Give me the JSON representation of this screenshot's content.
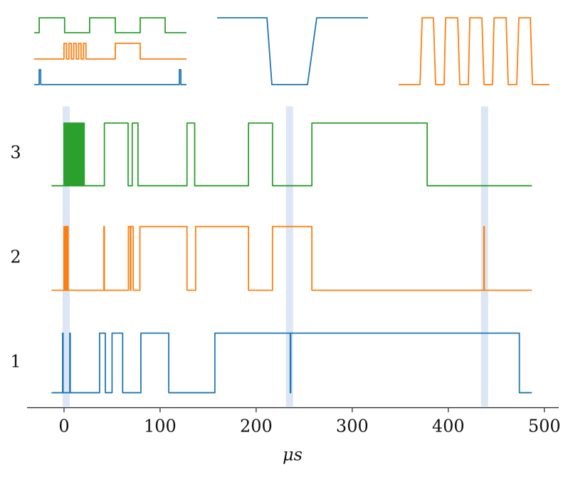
{
  "chart_data": [
    {
      "type": "line",
      "x_label": "μs",
      "xlim": [
        -38.5,
        515
      ],
      "xticks": [
        0,
        100,
        200,
        300,
        400,
        500
      ],
      "ylim": [
        0.57,
        3.45
      ],
      "yticks": [
        1,
        2,
        3
      ],
      "highlights": [
        [
          -1.5,
          6
        ],
        [
          231,
          238.5
        ],
        [
          434,
          441.5
        ]
      ],
      "highlight_color": "#dce6f4",
      "series": [
        {
          "color": "#1f77b4",
          "x": [
            -13,
            -1.5,
            -1.5,
            -1,
            -1,
            6,
            6,
            6.5,
            6.5,
            37,
            37,
            43,
            43,
            50,
            50,
            61,
            61,
            80,
            80,
            109,
            109,
            157,
            157,
            235.5,
            235.5,
            236,
            236,
            474,
            474,
            487
          ],
          "values": [
            0.71,
            0.71,
            1.28,
            1.28,
            0.71,
            0.71,
            1.28,
            1.28,
            0.71,
            0.71,
            1.28,
            1.28,
            0.71,
            0.71,
            1.28,
            1.28,
            0.71,
            0.71,
            1.28,
            1.28,
            0.71,
            0.71,
            1.28,
            1.28,
            0.71,
            0.71,
            1.28,
            1.28,
            0.71,
            0.71
          ]
        },
        {
          "color": "#ff7f0e",
          "x": [
            -13,
            0,
            0,
            0.6,
            0.6,
            1.2,
            1.2,
            1.8,
            1.8,
            2.4,
            2.4,
            3,
            3,
            3.6,
            3.6,
            4.2,
            4.2,
            41.5,
            41.5,
            42,
            42,
            67,
            67,
            69,
            69,
            69.5,
            69.5,
            72,
            72,
            79,
            79,
            128,
            128,
            137,
            137,
            192,
            192,
            217,
            217,
            258,
            258,
            437,
            437,
            437.5,
            437.5,
            487
          ],
          "values": [
            1.69,
            1.69,
            2.3,
            2.3,
            1.69,
            1.69,
            2.3,
            2.3,
            1.69,
            1.69,
            2.3,
            2.3,
            1.69,
            1.69,
            2.3,
            2.3,
            1.69,
            1.69,
            2.3,
            2.3,
            1.69,
            1.69,
            2.3,
            2.3,
            1.69,
            1.69,
            2.3,
            2.3,
            1.69,
            1.69,
            2.3,
            2.3,
            1.69,
            1.69,
            2.3,
            2.3,
            1.69,
            1.69,
            2.3,
            2.3,
            1.69,
            1.69,
            2.3,
            2.3,
            1.69,
            1.69
          ]
        },
        {
          "color": "#2ca02c",
          "x": [
            -13,
            0,
            0,
            1,
            1,
            2,
            2,
            3,
            3,
            4,
            4,
            5,
            5,
            6,
            6,
            7,
            7,
            8,
            8,
            9,
            9,
            10,
            10,
            11,
            11,
            12,
            12,
            13,
            13,
            14,
            14,
            15,
            15,
            16,
            16,
            17,
            17,
            18,
            18,
            19,
            19,
            20,
            20,
            21,
            21,
            42,
            42,
            66.7,
            66.7,
            71,
            71,
            77,
            77,
            128,
            128,
            136,
            136,
            192,
            192,
            217,
            217,
            258,
            258,
            378,
            378,
            487
          ],
          "values": [
            2.69,
            2.69,
            3.29,
            3.29,
            2.69,
            2.69,
            3.29,
            3.29,
            2.69,
            2.69,
            3.29,
            3.29,
            2.69,
            2.69,
            3.29,
            3.29,
            2.69,
            2.69,
            3.29,
            3.29,
            2.69,
            2.69,
            3.29,
            3.29,
            2.69,
            2.69,
            3.29,
            3.29,
            2.69,
            2.69,
            3.29,
            3.29,
            2.69,
            2.69,
            3.29,
            3.29,
            2.69,
            2.69,
            3.29,
            3.29,
            2.69,
            2.69,
            3.29,
            3.29,
            2.69,
            2.69,
            3.29,
            3.29,
            2.69,
            2.69,
            3.29,
            3.29,
            2.69,
            2.69,
            3.29,
            3.29,
            2.69,
            2.69,
            3.29,
            3.29,
            2.69,
            2.69,
            3.29,
            3.29,
            2.69,
            2.69
          ]
        }
      ]
    },
    {
      "type": "line",
      "xlim": [
        0,
        100
      ],
      "ylim": [
        0,
        11
      ],
      "series": [
        {
          "color": "#2ca02c",
          "x": [
            0,
            3.3,
            3.3,
            20,
            20,
            36.4,
            36.4,
            53.3,
            53.3,
            69.6,
            69.6,
            86,
            86,
            100
          ],
          "values": [
            7.9,
            7.9,
            10,
            10,
            7.9,
            7.9,
            10,
            10,
            7.9,
            7.9,
            10,
            10,
            7.9,
            7.9
          ]
        },
        {
          "color": "#ff7f0e",
          "x": [
            0,
            19.6,
            19.6,
            21.2,
            21.2,
            22.8,
            22.8,
            24.4,
            24.4,
            26,
            26,
            27.6,
            27.6,
            29.2,
            29.2,
            30.8,
            30.8,
            32.4,
            32.4,
            34,
            34,
            53.3,
            53.3,
            69.6,
            69.6,
            100
          ],
          "values": [
            4.2,
            4.2,
            6.4,
            6.4,
            4.2,
            4.2,
            6.4,
            6.4,
            4.2,
            4.2,
            6.4,
            6.4,
            4.2,
            4.2,
            6.4,
            6.4,
            4.2,
            4.2,
            6.4,
            6.4,
            4.2,
            4.2,
            6.4,
            6.4,
            4.2,
            4.2
          ]
        },
        {
          "color": "#1f77b4",
          "x": [
            0,
            3.3,
            3.3,
            4.3,
            4.3,
            95.3,
            95.3,
            96.3,
            96.3,
            100
          ],
          "values": [
            0.6,
            0.6,
            2.7,
            2.7,
            0.6,
            0.6,
            2.7,
            2.7,
            0.6,
            0.6
          ]
        }
      ]
    },
    {
      "type": "line",
      "xlim": [
        0,
        100
      ],
      "ylim": [
        0,
        11
      ],
      "series": [
        {
          "color": "#1f77b4",
          "x": [
            1.4,
            34,
            37.2,
            60.5,
            66.5,
            100
          ],
          "values": [
            10,
            10,
            0.6,
            0.6,
            10,
            10
          ]
        }
      ]
    },
    {
      "type": "line",
      "xlim": [
        0,
        100
      ],
      "ylim": [
        0,
        11
      ],
      "series": [
        {
          "color": "#ff7f0e",
          "x": [
            0.9,
            15,
            16.4,
            23.8,
            25.2,
            30.8,
            31.8,
            39.7,
            41.1,
            46.7,
            47.7,
            55.6,
            57,
            62.6,
            63.6,
            71.5,
            72.9,
            78.5,
            79.9,
            87.4,
            88.8,
            100
          ],
          "values": [
            0.6,
            0.6,
            10,
            10,
            0.6,
            0.6,
            10,
            10,
            0.6,
            0.6,
            10,
            10,
            0.6,
            0.6,
            10,
            10,
            0.6,
            0.6,
            10,
            10,
            0.6,
            0.6
          ]
        }
      ]
    }
  ]
}
